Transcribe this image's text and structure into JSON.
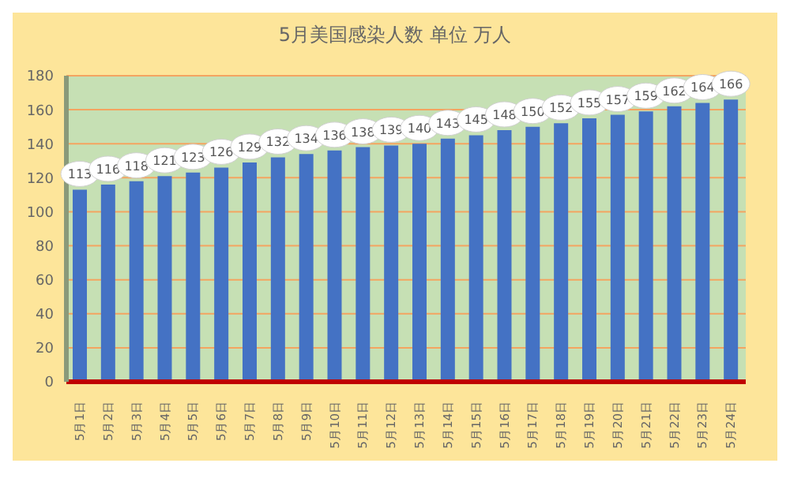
{
  "chart_data": {
    "type": "bar",
    "title": "5月美国感染人数 单位 万人",
    "categories": [
      "5月1日",
      "5月2日",
      "5月3日",
      "5月4日",
      "5月5日",
      "5月6日",
      "5月7日",
      "5月8日",
      "5月9日",
      "5月10日",
      "5月11日",
      "5月12日",
      "5月13日",
      "5月14日",
      "5月15日",
      "5月16日",
      "5月17日",
      "5月18日",
      "5月19日",
      "5月20日",
      "5月21日",
      "5月22日",
      "5月23日",
      "5月24日"
    ],
    "values": [
      113,
      116,
      118,
      121,
      123,
      126,
      129,
      132,
      134,
      136,
      138,
      139,
      140,
      143,
      145,
      148,
      150,
      152,
      155,
      157,
      159,
      162,
      164,
      166
    ],
    "color": "#4472c4",
    "ylim": [
      0,
      180
    ],
    "yticks": [
      0,
      20,
      40,
      60,
      80,
      100,
      120,
      140,
      160,
      180
    ],
    "grid": "y",
    "data_labels": true
  }
}
